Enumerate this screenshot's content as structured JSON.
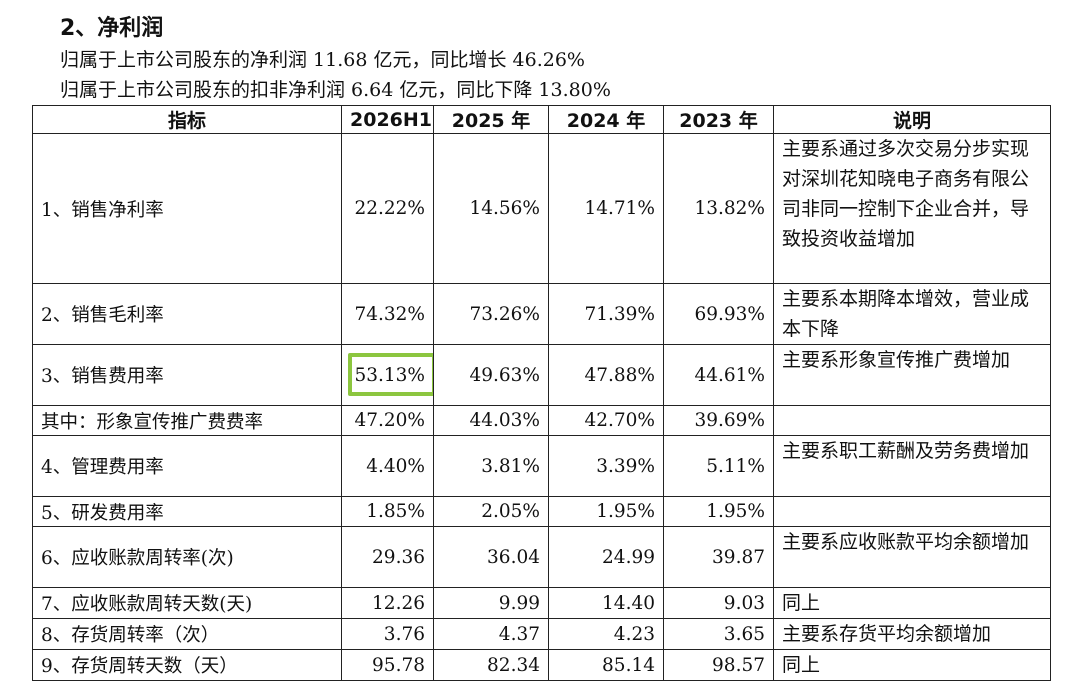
{
  "heading": "2、净利润",
  "summary_lines": [
    "归属于上市公司股东的净利润 11.68 亿元，同比增长 46.26%",
    "归属于上市公司股东的扣非净利润 6.64 亿元，同比下降 13.80%"
  ],
  "table": {
    "headers": [
      "指标",
      "2026H1",
      "2025 年",
      "2024 年",
      "2023 年",
      "说明"
    ],
    "rows": [
      {
        "name": "1、销售净利率",
        "values": [
          "22.22%",
          "14.56%",
          "14.71%",
          "13.82%"
        ],
        "note": "主要系通过多次交易分步实现对深圳花知晓电子商务有限公司非同一控制下企业合并，导致投资收益增加"
      },
      {
        "name": "2、销售毛利率",
        "values": [
          "74.32%",
          "73.26%",
          "71.39%",
          "69.93%"
        ],
        "note": "主要系本期降本增效，营业成本下降"
      },
      {
        "name": "3、销售费用率",
        "values": [
          "53.13%",
          "49.63%",
          "47.88%",
          "44.61%"
        ],
        "note": "主要系形象宣传推广费增加"
      },
      {
        "name": "其中：形象宣传推广费费率",
        "values": [
          "47.20%",
          "44.03%",
          "42.70%",
          "39.69%"
        ],
        "note": ""
      },
      {
        "name": "4、管理费用率",
        "values": [
          "4.40%",
          "3.81%",
          "3.39%",
          "5.11%"
        ],
        "note": "主要系职工薪酬及劳务费增加"
      },
      {
        "name": "5、研发费用率",
        "values": [
          "1.85%",
          "2.05%",
          "1.95%",
          "1.95%"
        ],
        "note": ""
      },
      {
        "name": "6、应收账款周转率(次)",
        "values": [
          "29.36",
          "36.04",
          "24.99",
          "39.87"
        ],
        "note": "主要系应收账款平均余额增加"
      },
      {
        "name": "7、应收账款周转天数(天)",
        "values": [
          "12.26",
          "9.99",
          "14.40",
          "9.03"
        ],
        "note": "同上"
      },
      {
        "name": "8、存货周转率（次）",
        "values": [
          "3.76",
          "4.37",
          "4.23",
          "3.65"
        ],
        "note": "主要系存货平均余额增加"
      },
      {
        "name": "9、存货周转天数（天）",
        "values": [
          "95.78",
          "82.34",
          "85.14",
          "98.57"
        ],
        "note": "同上"
      }
    ]
  },
  "highlight_color": "#8cc63f"
}
